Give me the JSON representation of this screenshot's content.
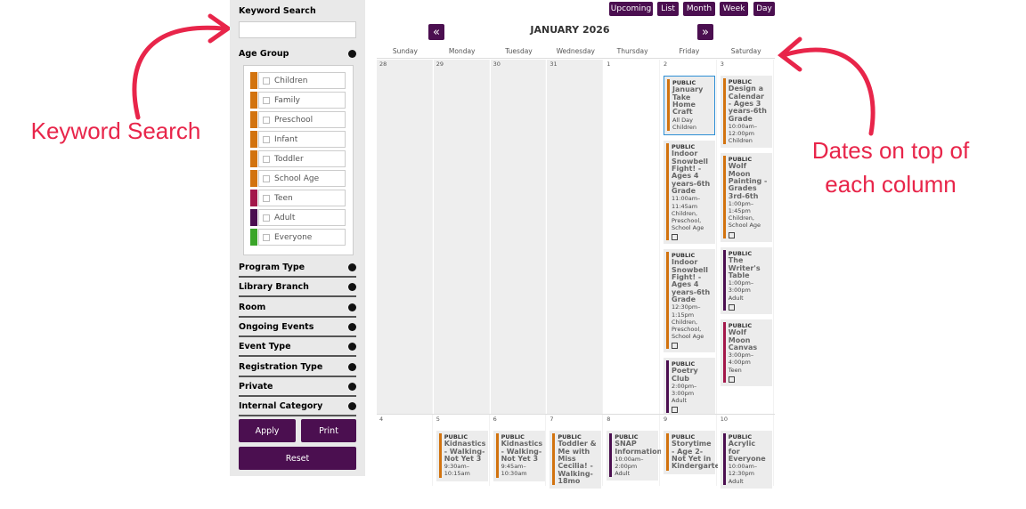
{
  "annotations": {
    "left": "Keyword Search",
    "right": [
      "Dates on top of",
      "each column"
    ]
  },
  "sidebar": {
    "keyword_label": "Keyword Search",
    "age_group": "Age Group",
    "age_options": [
      {
        "label": "Children",
        "color": "#d2730f"
      },
      {
        "label": "Family",
        "color": "#d2730f"
      },
      {
        "label": "Preschool",
        "color": "#d2730f"
      },
      {
        "label": "Infant",
        "color": "#d2730f"
      },
      {
        "label": "Toddler",
        "color": "#d2730f"
      },
      {
        "label": "School Age",
        "color": "#d2730f"
      },
      {
        "label": "Teen",
        "color": "#a3174a"
      },
      {
        "label": "Adult",
        "color": "#4b0f50"
      },
      {
        "label": "Everyone",
        "color": "#3aa528"
      }
    ],
    "filters": [
      "Program Type",
      "Library Branch",
      "Room",
      "Ongoing Events",
      "Event Type",
      "Registration Type",
      "Private",
      "Internal Category"
    ],
    "buttons": {
      "apply": "Apply",
      "print": "Print",
      "reset": "Reset"
    }
  },
  "calendar": {
    "view_buttons": [
      "Upcoming",
      "List",
      "Month",
      "Week",
      "Day"
    ],
    "prev": "«",
    "next": "»",
    "title": "JANUARY 2026",
    "weekdays": [
      "Sunday",
      "Monday",
      "Tuesday",
      "Wednesday",
      "Thursday",
      "Friday",
      "Saturday"
    ],
    "weeks": [
      {
        "days": [
          {
            "date": 28,
            "other_month": true,
            "events": []
          },
          {
            "date": 29,
            "other_month": true,
            "events": []
          },
          {
            "date": 30,
            "other_month": true,
            "events": []
          },
          {
            "date": 31,
            "other_month": true,
            "events": []
          },
          {
            "date": 1,
            "events": []
          },
          {
            "date": 2,
            "events": [
              {
                "tag": "PUBLIC",
                "title": "January Take Home Craft",
                "time": "All Day",
                "audience": "Children",
                "color": "#d2730f",
                "selected": true
              },
              {
                "tag": "PUBLIC",
                "title": "Indoor Snowbell Fight! - Ages 4 years-6th Grade",
                "time": "11:00am–11:45am",
                "audience": "Children, Preschool, School Age",
                "color": "#d2730f",
                "edit": true
              },
              {
                "tag": "PUBLIC",
                "title": "Indoor Snowbell Fight! - Ages 4 years-6th Grade",
                "time": "12:30pm–1:15pm",
                "audience": "Children, Preschool, School Age",
                "color": "#d2730f",
                "edit": true
              },
              {
                "tag": "PUBLIC",
                "title": "Poetry Club",
                "time": "2:00pm–3:00pm",
                "audience": "Adult",
                "color": "#4b0f50",
                "edit": true
              }
            ]
          },
          {
            "date": 3,
            "events": [
              {
                "tag": "PUBLIC",
                "title": "Design a Calendar - Ages 3 years-6th Grade",
                "time": "10:00am–12:00pm",
                "audience": "Children",
                "color": "#d2730f"
              },
              {
                "tag": "PUBLIC",
                "title": "Wolf Moon Painting - Grades 3rd-6th",
                "time": "1:00pm–1:45pm",
                "audience": "Children, School Age",
                "color": "#d2730f",
                "edit": true
              },
              {
                "tag": "PUBLIC",
                "title": "The Writer's Table",
                "time": "1:00pm–3:00pm",
                "audience": "Adult",
                "color": "#4b0f50",
                "edit": true
              },
              {
                "tag": "PUBLIC",
                "title": "Wolf Moon Canvas",
                "time": "3:00pm–4:00pm",
                "audience": "Teen",
                "color": "#a3174a",
                "edit": true
              }
            ]
          }
        ]
      },
      {
        "days": [
          {
            "date": 4,
            "events": []
          },
          {
            "date": 5,
            "events": [
              {
                "tag": "PUBLIC",
                "title": "Kidnastics - Walking-Not Yet 3",
                "time": "9:30am–10:15am",
                "color": "#d2730f"
              }
            ]
          },
          {
            "date": 6,
            "events": [
              {
                "tag": "PUBLIC",
                "title": "Kidnastics - Walking-Not Yet 3",
                "time": "9:45am–10:30am",
                "color": "#d2730f"
              }
            ]
          },
          {
            "date": 7,
            "events": [
              {
                "tag": "PUBLIC",
                "title": "Toddler & Me with Miss Cecilia! - Walking-18mo",
                "color": "#d2730f"
              }
            ]
          },
          {
            "date": 8,
            "events": [
              {
                "tag": "PUBLIC",
                "title": "SNAP Information",
                "time": "10:00am–2:00pm",
                "audience": "Adult",
                "color": "#4b0f50"
              }
            ]
          },
          {
            "date": 9,
            "events": [
              {
                "tag": "PUBLIC",
                "title": "Storytime - Age 2-Not Yet in Kindergarten",
                "color": "#d2730f"
              }
            ]
          },
          {
            "date": 10,
            "events": [
              {
                "tag": "PUBLIC",
                "title": "Acrylic for Everyone",
                "time": "10:00am–12:30pm",
                "audience": "Adult",
                "color": "#4b0f50"
              }
            ]
          }
        ]
      }
    ]
  }
}
